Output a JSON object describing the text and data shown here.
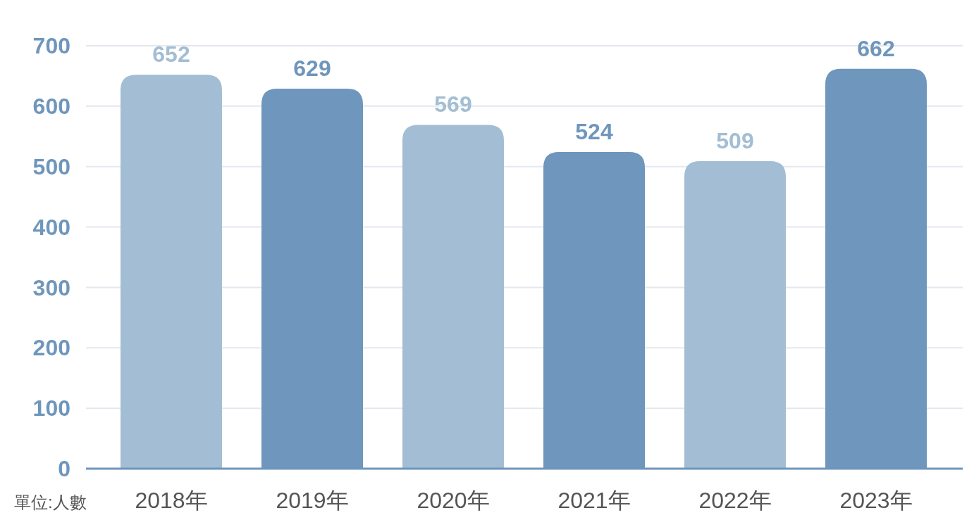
{
  "chart_data": {
    "type": "bar",
    "categories": [
      "2018年",
      "2019年",
      "2020年",
      "2021年",
      "2022年",
      "2023年"
    ],
    "values": [
      652,
      629,
      569,
      524,
      509,
      662
    ],
    "colors": [
      "#a3bed4",
      "#6f96bc",
      "#a3bed4",
      "#6f96bc",
      "#a3bed4",
      "#6f96bc"
    ],
    "ylim": [
      0,
      700
    ],
    "yticks": [
      0,
      100,
      200,
      300,
      400,
      500,
      600,
      700
    ],
    "grid": "y",
    "data_labels": true,
    "annotations": [
      "單位:人數"
    ]
  }
}
